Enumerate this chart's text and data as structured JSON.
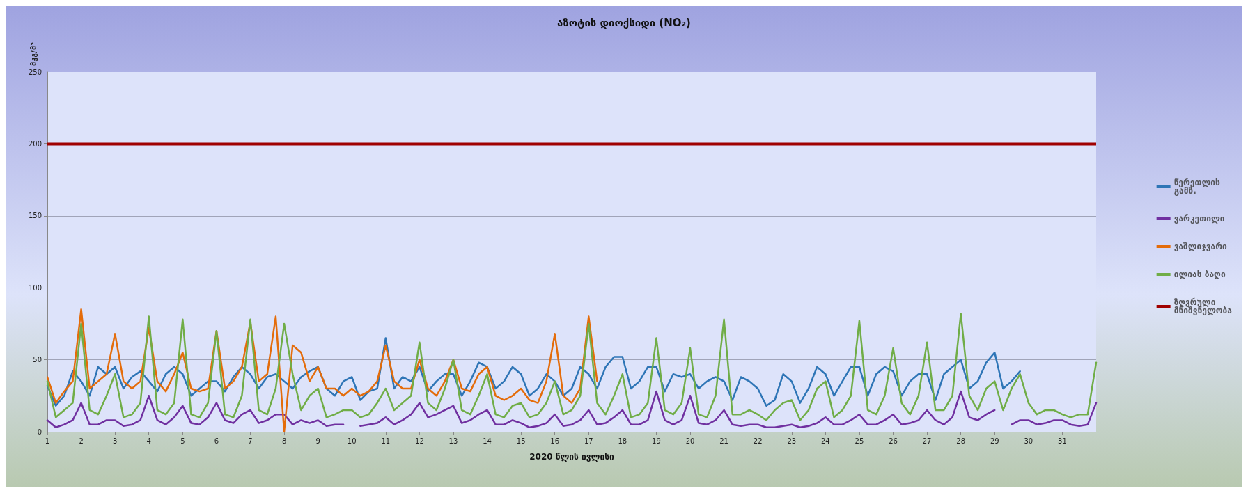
{
  "chart_data": {
    "type": "line",
    "title": "აზოტის დიოქსიდი (NO₂)",
    "ylabel": "მკგ/მ³",
    "xlabel": "2020 წლის ივლისი",
    "x": [
      1,
      1.25,
      1.5,
      1.75,
      2,
      2.25,
      2.5,
      2.75,
      3,
      3.25,
      3.5,
      3.75,
      4,
      4.25,
      4.5,
      4.75,
      5,
      5.25,
      5.5,
      5.75,
      6,
      6.25,
      6.5,
      6.75,
      7,
      7.25,
      7.5,
      7.75,
      8,
      8.25,
      8.5,
      8.75,
      9,
      9.25,
      9.5,
      9.75,
      10,
      10.25,
      10.5,
      10.75,
      11,
      11.25,
      11.5,
      11.75,
      12,
      12.25,
      12.5,
      12.75,
      13,
      13.25,
      13.5,
      13.75,
      14,
      14.25,
      14.5,
      14.75,
      15,
      15.25,
      15.5,
      15.75,
      16,
      16.25,
      16.5,
      16.75,
      17,
      17.25,
      17.5,
      17.75,
      18,
      18.25,
      18.5,
      18.75,
      19,
      19.25,
      19.5,
      19.75,
      20,
      20.25,
      20.5,
      20.75,
      21,
      21.25,
      21.5,
      21.75,
      22,
      22.25,
      22.5,
      22.75,
      23,
      23.25,
      23.5,
      23.75,
      24,
      24.25,
      24.5,
      24.75,
      25,
      25.25,
      25.5,
      25.75,
      26,
      26.25,
      26.5,
      26.75,
      27,
      27.25,
      27.5,
      27.75,
      28,
      28.25,
      28.5,
      28.75,
      29,
      29.25,
      29.5,
      29.75,
      30,
      30.25,
      30.5,
      30.75,
      31,
      31.25,
      31.5,
      31.75,
      32
    ],
    "series": [
      {
        "name": "წერეთლის გამზ.",
        "color": "#2e75b6",
        "values": [
          32,
          18,
          25,
          42,
          35,
          25,
          45,
          40,
          45,
          30,
          38,
          42,
          35,
          28,
          40,
          45,
          40,
          25,
          30,
          35,
          35,
          28,
          38,
          45,
          40,
          30,
          38,
          40,
          35,
          30,
          38,
          42,
          45,
          30,
          25,
          35,
          38,
          22,
          28,
          30,
          65,
          30,
          38,
          35,
          45,
          28,
          35,
          40,
          40,
          25,
          35,
          48,
          45,
          30,
          35,
          45,
          40,
          25,
          30,
          40,
          35,
          25,
          30,
          45,
          40,
          30,
          45,
          52,
          52,
          30,
          35,
          45,
          45,
          28,
          40,
          38,
          40,
          30,
          35,
          38,
          35,
          22,
          38,
          35,
          30,
          18,
          22,
          40,
          35,
          20,
          30,
          45,
          40,
          25,
          35,
          45,
          45,
          25,
          40,
          45,
          42,
          25,
          35,
          40,
          40,
          22,
          40,
          45,
          50,
          30,
          35,
          48,
          55,
          30,
          35,
          42,
          null,
          null,
          null,
          null,
          null,
          null,
          null,
          null,
          null
        ]
      },
      {
        "name": "ვარკეთილი",
        "color": "#7030a0",
        "values": [
          8,
          3,
          5,
          8,
          20,
          5,
          5,
          8,
          8,
          4,
          5,
          8,
          25,
          8,
          5,
          10,
          18,
          6,
          5,
          10,
          20,
          8,
          6,
          12,
          15,
          6,
          8,
          12,
          12,
          5,
          8,
          6,
          8,
          4,
          5,
          5,
          null,
          4,
          5,
          6,
          10,
          5,
          8,
          12,
          20,
          10,
          12,
          15,
          18,
          6,
          8,
          12,
          15,
          5,
          5,
          8,
          6,
          3,
          4,
          6,
          12,
          4,
          5,
          8,
          15,
          5,
          6,
          10,
          15,
          5,
          5,
          8,
          28,
          8,
          5,
          8,
          25,
          6,
          5,
          8,
          15,
          5,
          4,
          5,
          5,
          3,
          3,
          4,
          5,
          3,
          4,
          6,
          10,
          5,
          5,
          8,
          12,
          5,
          5,
          8,
          12,
          5,
          6,
          8,
          15,
          8,
          5,
          10,
          28,
          10,
          8,
          12,
          15,
          null,
          5,
          8,
          8,
          5,
          6,
          8,
          8,
          5,
          4,
          5,
          20
        ]
      },
      {
        "name": "ვაშლიჯვარი",
        "color": "#e46c0a",
        "values": [
          38,
          20,
          28,
          35,
          85,
          30,
          35,
          40,
          68,
          35,
          30,
          35,
          72,
          35,
          28,
          40,
          55,
          30,
          28,
          30,
          70,
          30,
          35,
          45,
          76,
          35,
          40,
          80,
          0,
          60,
          55,
          35,
          45,
          30,
          30,
          25,
          30,
          25,
          28,
          35,
          60,
          35,
          30,
          30,
          50,
          30,
          25,
          35,
          50,
          30,
          28,
          40,
          45,
          25,
          22,
          25,
          30,
          22,
          20,
          35,
          68,
          25,
          20,
          30,
          80,
          35,
          null,
          null,
          null,
          null,
          null,
          null,
          null,
          null,
          null,
          null,
          null,
          null,
          null,
          null,
          null,
          null,
          null,
          null,
          null,
          null,
          null,
          null,
          null,
          null,
          null,
          null,
          null,
          null,
          null,
          null,
          null,
          null,
          null,
          null,
          null,
          null,
          null,
          null,
          null,
          null,
          null,
          null,
          null,
          null,
          null,
          null,
          null,
          null,
          null,
          null,
          null,
          null,
          null,
          null,
          null,
          null,
          null,
          null,
          null
        ]
      },
      {
        "name": "ილიას ბაღი",
        "color": "#70ad47",
        "values": [
          35,
          10,
          15,
          20,
          75,
          15,
          12,
          25,
          40,
          10,
          12,
          20,
          80,
          15,
          12,
          20,
          78,
          12,
          10,
          20,
          70,
          12,
          10,
          25,
          78,
          15,
          12,
          30,
          75,
          40,
          15,
          25,
          30,
          10,
          12,
          15,
          15,
          10,
          12,
          20,
          30,
          15,
          20,
          25,
          62,
          20,
          15,
          30,
          50,
          15,
          12,
          25,
          40,
          12,
          10,
          18,
          20,
          10,
          12,
          20,
          35,
          12,
          15,
          25,
          75,
          20,
          12,
          25,
          40,
          10,
          12,
          20,
          65,
          15,
          12,
          20,
          58,
          12,
          10,
          25,
          78,
          12,
          12,
          15,
          12,
          8,
          15,
          20,
          22,
          8,
          15,
          30,
          35,
          10,
          15,
          25,
          77,
          15,
          12,
          25,
          58,
          20,
          12,
          25,
          62,
          15,
          15,
          25,
          82,
          25,
          15,
          30,
          35,
          15,
          30,
          40,
          20,
          12,
          15,
          15,
          12,
          10,
          12,
          12,
          48
        ]
      }
    ],
    "ref_lines": [
      {
        "axis": "y",
        "value": 200,
        "label": "ზღვრული მნიშვნელობა",
        "color": "#a00000"
      }
    ],
    "xlim": [
      1,
      32
    ],
    "xticks": [
      1,
      2,
      3,
      4,
      5,
      6,
      7,
      8,
      9,
      10,
      11,
      12,
      13,
      14,
      15,
      16,
      17,
      18,
      19,
      20,
      21,
      22,
      23,
      24,
      25,
      26,
      27,
      28,
      29,
      30,
      31
    ],
    "ylim": [
      0,
      250
    ],
    "yticks": [
      0,
      50,
      100,
      150,
      200,
      250
    ],
    "grid": "y",
    "legend": "right",
    "marker": "none",
    "line_style": "solid"
  }
}
